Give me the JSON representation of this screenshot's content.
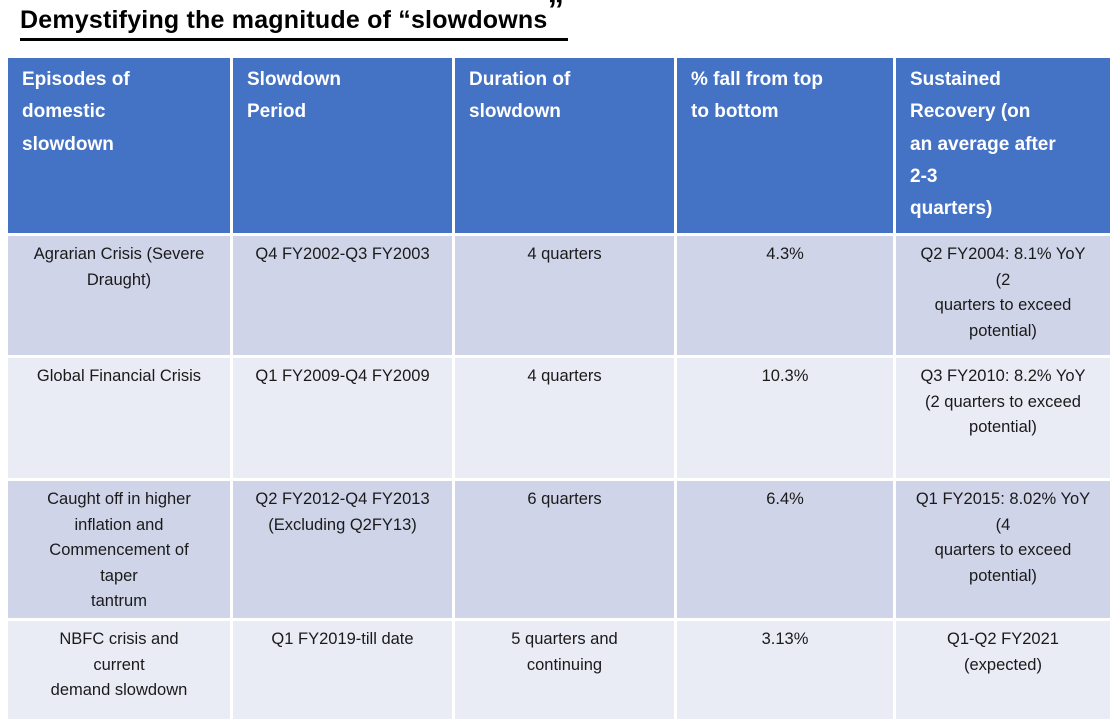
{
  "title": {
    "text": "Demystifying the magnitude of “slowdowns",
    "closing_quote": "”"
  },
  "colors": {
    "header_bg": "#4472C4",
    "header_text": "#FFFFFF",
    "row_band_dark": "#CFD4E8",
    "row_band_light": "#E9EBF5",
    "body_text": "#1A1A1A",
    "separator": "#FFFFFF",
    "title_text": "#000000"
  },
  "table": {
    "headers": [
      "Episodes of\ndomestic\nslowdown",
      "Slowdown\nPeriod",
      "Duration of\nslowdown",
      "% fall from top\nto bottom",
      "Sustained\nRecovery (on\nan average after\n2-3\nquarters)"
    ],
    "rows": [
      {
        "cells": [
          "Agrarian Crisis (Severe\nDraught)",
          "Q4 FY2002-Q3 FY2003",
          "4 quarters",
          "4.3%",
          "Q2 FY2004: 8.1% YoY\n(2\nquarters to exceed\npotential)"
        ]
      },
      {
        "cells": [
          "Global Financial Crisis",
          "Q1 FY2009-Q4 FY2009",
          "4 quarters",
          "10.3%",
          "Q3 FY2010: 8.2% YoY\n(2 quarters to exceed\npotential)"
        ]
      },
      {
        "cells": [
          "Caught off in higher\ninflation and\nCommencement of\ntaper\ntantrum",
          "Q2 FY2012-Q4 FY2013\n(Excluding Q2FY13)",
          "6 quarters",
          "6.4%",
          "Q1 FY2015: 8.02% YoY\n(4\nquarters to exceed\npotential)"
        ]
      },
      {
        "cells": [
          "NBFC crisis and\ncurrent\ndemand slowdown",
          "Q1 FY2019-till date",
          "5 quarters and\ncontinuing",
          "3.13%",
          "Q1-Q2 FY2021\n(expected)"
        ]
      }
    ]
  },
  "chart_data": {
    "type": "table",
    "title": "Demystifying the magnitude of “slowdowns”",
    "columns": [
      "Episodes of domestic slowdown",
      "Slowdown Period",
      "Duration of slowdown",
      "% fall from top to bottom",
      "Sustained Recovery (on an average after 2-3 quarters)"
    ],
    "rows": [
      [
        "Agrarian Crisis (Severe Draught)",
        "Q4 FY2002-Q3 FY2003",
        "4 quarters",
        "4.3%",
        "Q2 FY2004: 8.1% YoY (2 quarters to exceed potential)"
      ],
      [
        "Global Financial Crisis",
        "Q1 FY2009-Q4 FY2009",
        "4 quarters",
        "10.3%",
        "Q3 FY2010: 8.2% YoY (2 quarters to exceed potential)"
      ],
      [
        "Caught off in higher inflation and Commencement of taper tantrum",
        "Q2 FY2012-Q4 FY2013 (Excluding Q2FY13)",
        "6 quarters",
        "6.4%",
        "Q1 FY2015: 8.02% YoY (4 quarters to exceed potential)"
      ],
      [
        "NBFC crisis and current demand slowdown",
        "Q1 FY2019-till date",
        "5 quarters and continuing",
        "3.13%",
        "Q1-Q2 FY2021 (expected)"
      ]
    ],
    "fall_pct_values": [
      4.3,
      10.3,
      6.4,
      3.13
    ],
    "duration_quarters": [
      4,
      4,
      6,
      5
    ],
    "layout": {
      "header_row": true,
      "banded_rows": true,
      "columns_count": 5,
      "rows_count": 4
    }
  }
}
